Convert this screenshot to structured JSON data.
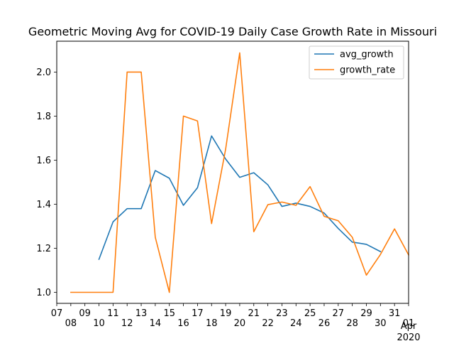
{
  "chart_data": {
    "type": "line",
    "title": "Geometric Moving Avg for COVID-19 Daily Case Growth Rate in Missouri",
    "xlabel": "",
    "ylabel": "",
    "x": [
      "2020-03-08",
      "2020-03-09",
      "2020-03-10",
      "2020-03-11",
      "2020-03-12",
      "2020-03-13",
      "2020-03-14",
      "2020-03-15",
      "2020-03-16",
      "2020-03-17",
      "2020-03-18",
      "2020-03-19",
      "2020-03-20",
      "2020-03-21",
      "2020-03-22",
      "2020-03-23",
      "2020-03-24",
      "2020-03-25",
      "2020-03-26",
      "2020-03-27",
      "2020-03-28",
      "2020-03-29",
      "2020-03-30",
      "2020-03-31",
      "2020-04-01"
    ],
    "series": [
      {
        "name": "avg_growth",
        "color": "#1f77b4",
        "values": [
          null,
          null,
          1.15,
          1.32,
          1.38,
          1.38,
          1.553,
          1.518,
          1.395,
          1.475,
          1.71,
          1.605,
          1.522,
          1.543,
          1.488,
          1.39,
          1.405,
          1.39,
          1.36,
          1.29,
          1.228,
          1.218,
          1.185,
          null,
          null
        ]
      },
      {
        "name": "growth_rate",
        "color": "#ff7f0e",
        "values": [
          1.0,
          1.0,
          1.0,
          1.0,
          2.0,
          2.0,
          1.25,
          1.0,
          1.8,
          1.778,
          1.312,
          1.65,
          2.087,
          1.275,
          1.398,
          1.41,
          1.395,
          1.48,
          1.345,
          1.325,
          1.25,
          1.078,
          1.172,
          1.288,
          1.17
        ]
      }
    ],
    "x_ticks": [
      "07",
      "08",
      "09",
      "10",
      "11",
      "12",
      "13",
      "14",
      "15",
      "16",
      "17",
      "18",
      "19",
      "20",
      "21",
      "22",
      "23",
      "24",
      "25",
      "26",
      "27",
      "28",
      "29",
      "30",
      "31",
      "01"
    ],
    "x_tick_extra": [
      "Apr",
      "2020"
    ],
    "yticks": [
      1.0,
      1.2,
      1.4,
      1.6,
      1.8,
      2.0
    ],
    "ytick_labels": [
      "1.0",
      "1.2",
      "1.4",
      "1.6",
      "1.8",
      "2.0"
    ],
    "ylim": [
      0.95,
      2.14
    ],
    "xlim": [
      "2020-03-07",
      "2020-04-01"
    ],
    "grid": false,
    "legend": {
      "position": "top-right",
      "entries": [
        "avg_growth",
        "growth_rate"
      ]
    }
  }
}
